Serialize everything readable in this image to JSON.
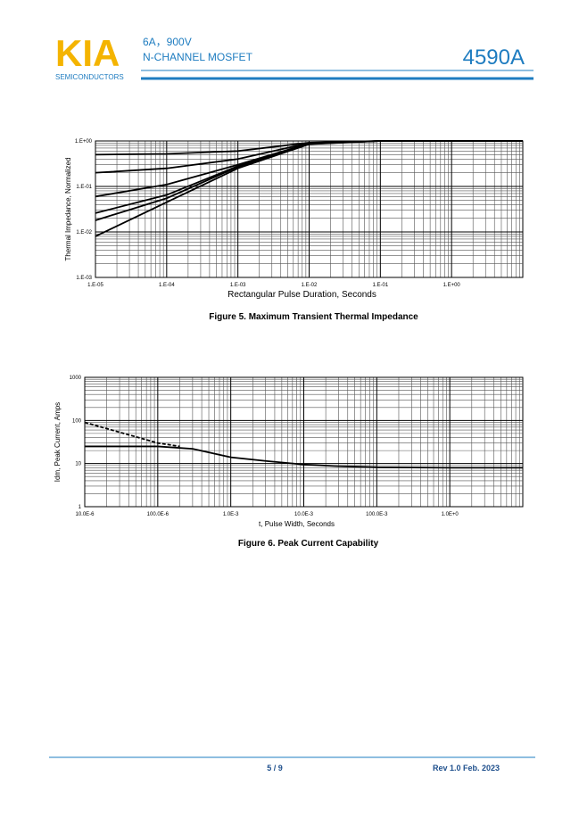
{
  "header": {
    "logo": "KIA",
    "logo_subtitle": "SEMICONDUCTORS",
    "rating": "6A，900V",
    "device_type": "N-CHANNEL MOSFET",
    "part_number": "4590A"
  },
  "footer": {
    "page": "5 / 9",
    "revision": "Rev 1.0 Feb. 2023"
  },
  "chart_data": [
    {
      "type": "line",
      "title": "Figure 5. Maximum Transient Thermal Impedance",
      "x_label": "Rectangular Pulse Duration, Seconds",
      "y_label": "Thermal Impedance, Normalized",
      "xlog": true,
      "ylog": true,
      "grid": true,
      "minor_grid": true,
      "xlim": [
        1e-05,
        10
      ],
      "ylim": [
        0.001,
        1
      ],
      "xticks": [
        {
          "value": 1e-05,
          "label": "1.E-05"
        },
        {
          "value": 0.0001,
          "label": "1.E-04"
        },
        {
          "value": 0.001,
          "label": "1.E-03"
        },
        {
          "value": 0.01,
          "label": "1.E-02"
        },
        {
          "value": 0.1,
          "label": "1.E-01"
        },
        {
          "value": 1,
          "label": "1.E+00"
        }
      ],
      "yticks": [
        {
          "value": 1,
          "label": "1.E+00"
        },
        {
          "value": 0.1,
          "label": "1.E-01"
        },
        {
          "value": 0.01,
          "label": "1.E-02"
        },
        {
          "value": 0.001,
          "label": "1.E-03"
        }
      ],
      "x": [
        1e-05,
        0.0001,
        0.001,
        0.01,
        0.1,
        1,
        10
      ],
      "series": [
        {
          "color": "#000000",
          "values": [
            0.5,
            0.52,
            0.6,
            0.92,
            1,
            1,
            1
          ]
        },
        {
          "color": "#000000",
          "values": [
            0.2,
            0.25,
            0.4,
            0.9,
            1,
            1,
            1
          ]
        },
        {
          "color": "#000000",
          "values": [
            0.06,
            0.11,
            0.3,
            0.88,
            1,
            1,
            1
          ]
        },
        {
          "color": "#000000",
          "values": [
            0.026,
            0.065,
            0.28,
            0.87,
            1,
            1,
            1
          ]
        },
        {
          "color": "#000000",
          "values": [
            0.018,
            0.055,
            0.27,
            0.86,
            1,
            1,
            1
          ]
        },
        {
          "color": "#000000",
          "values": [
            0.008,
            0.045,
            0.25,
            0.85,
            1,
            1,
            1
          ]
        }
      ]
    },
    {
      "type": "line",
      "title": "Figure 6. Peak Current Capability",
      "x_label": "t, Pulse Width, Seconds",
      "y_label": "Idm, Peak Current, Amps",
      "xlog": true,
      "ylog": true,
      "grid": true,
      "minor_grid": true,
      "xlim": [
        1e-05,
        10
      ],
      "ylim": [
        1,
        1000
      ],
      "xticks": [
        {
          "value": 1e-05,
          "label": "10.0E-6"
        },
        {
          "value": 0.0001,
          "label": "100.0E-6"
        },
        {
          "value": 0.001,
          "label": "1.0E-3"
        },
        {
          "value": 0.01,
          "label": "10.0E-3"
        },
        {
          "value": 0.1,
          "label": "100.0E-3"
        },
        {
          "value": 1,
          "label": "1.0E+0"
        }
      ],
      "yticks": [
        1000,
        100,
        10,
        1
      ],
      "series": [
        {
          "color": "#000000",
          "x": [
            1e-05,
            0.0001,
            0.0003,
            0.001,
            0.003,
            0.01,
            0.03,
            0.1,
            1,
            10
          ],
          "values": [
            25,
            25,
            22,
            14,
            11.5,
            9.5,
            8.7,
            8.2,
            8,
            8
          ]
        },
        {
          "color": "#000000",
          "dashed": true,
          "x": [
            1e-05,
            0.0001,
            0.0002
          ],
          "values": [
            90,
            30,
            25
          ]
        }
      ]
    }
  ]
}
